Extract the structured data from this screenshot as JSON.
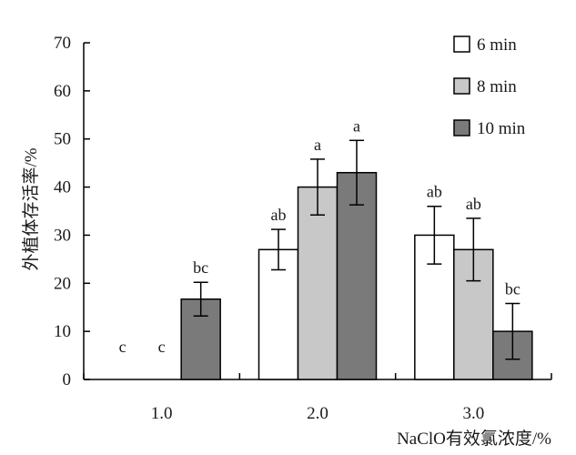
{
  "chart_data": {
    "type": "bar",
    "title": "",
    "xlabel": "NaClO有效氯浓度/%",
    "ylabel": "外植体存活率/%",
    "ylim": [
      0,
      70
    ],
    "yticks": [
      0,
      10,
      20,
      30,
      40,
      50,
      60,
      70
    ],
    "categories": [
      "1.0",
      "2.0",
      "3.0"
    ],
    "legend_position": "top-right",
    "grid": false,
    "series": [
      {
        "name": "6 min",
        "color": "#ffffff",
        "values": [
          0,
          27,
          30
        ],
        "errors": [
          0,
          4.2,
          6
        ],
        "labels": [
          "c",
          "ab",
          "ab"
        ]
      },
      {
        "name": "8 min",
        "color": "#c8c8c8",
        "values": [
          0,
          40,
          27
        ],
        "errors": [
          0,
          5.8,
          6.5
        ],
        "labels": [
          "c",
          "a",
          "ab"
        ]
      },
      {
        "name": "10 min",
        "color": "#7a7a7a",
        "values": [
          16.7,
          43,
          10
        ],
        "errors": [
          3.5,
          6.7,
          5.8
        ],
        "labels": [
          "bc",
          "a",
          "bc"
        ]
      }
    ]
  }
}
